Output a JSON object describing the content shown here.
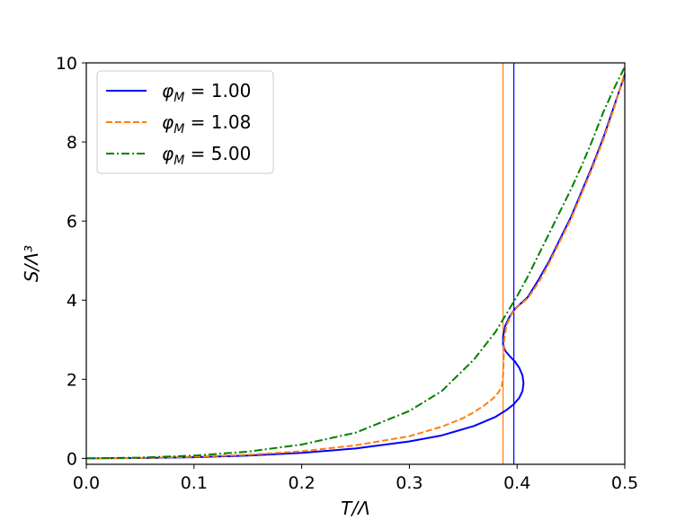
{
  "chart_data": {
    "type": "line",
    "title": "",
    "xlabel": "T/Λ",
    "ylabel": "S/Λ³",
    "xlim": [
      0.0,
      0.5
    ],
    "ylim": [
      -0.15,
      10.0
    ],
    "xticks": [
      "0.0",
      "0.1",
      "0.2",
      "0.3",
      "0.4",
      "0.5"
    ],
    "yticks": [
      "0",
      "2",
      "4",
      "6",
      "8",
      "10"
    ],
    "grid": false,
    "legend_position": "top-left",
    "series": [
      {
        "name": "φ_M = 1.00",
        "legend_symbol": "φ",
        "legend_subscript": "M",
        "legend_value": " = 1.00",
        "color": "#0000ff",
        "style": "solid",
        "x": [
          0.0,
          0.05,
          0.1,
          0.15,
          0.2,
          0.25,
          0.3,
          0.33,
          0.36,
          0.38,
          0.39,
          0.397,
          0.402,
          0.405,
          0.406,
          0.405,
          0.402,
          0.398,
          0.393,
          0.389,
          0.387,
          0.387,
          0.389,
          0.393,
          0.398,
          0.41,
          0.42,
          0.43,
          0.44,
          0.45,
          0.46,
          0.47,
          0.48,
          0.49,
          0.5
        ],
        "y": [
          0.0,
          0.01,
          0.03,
          0.07,
          0.14,
          0.25,
          0.43,
          0.58,
          0.82,
          1.05,
          1.22,
          1.37,
          1.53,
          1.7,
          1.9,
          2.1,
          2.29,
          2.45,
          2.59,
          2.72,
          2.88,
          3.08,
          3.35,
          3.58,
          3.78,
          4.08,
          4.52,
          5.0,
          5.55,
          6.1,
          6.75,
          7.4,
          8.1,
          8.9,
          9.7
        ]
      },
      {
        "name": "φ_M = 1.08",
        "legend_symbol": "φ",
        "legend_subscript": "M",
        "legend_value": " = 1.08",
        "color": "#ff7f0e",
        "style": "dashed",
        "x": [
          0.0,
          0.05,
          0.1,
          0.15,
          0.2,
          0.25,
          0.3,
          0.33,
          0.35,
          0.36,
          0.37,
          0.378,
          0.383,
          0.386,
          0.387,
          0.3875,
          0.388,
          0.39,
          0.395,
          0.4,
          0.41,
          0.42,
          0.43,
          0.44,
          0.45,
          0.46,
          0.47,
          0.48,
          0.49,
          0.5
        ],
        "y": [
          0.0,
          0.01,
          0.04,
          0.09,
          0.18,
          0.33,
          0.56,
          0.8,
          1.02,
          1.17,
          1.35,
          1.52,
          1.68,
          1.85,
          2.1,
          2.5,
          3.0,
          3.35,
          3.65,
          3.82,
          4.05,
          4.45,
          4.95,
          5.5,
          6.05,
          6.7,
          7.35,
          8.05,
          8.85,
          9.75
        ]
      },
      {
        "name": "φ_M = 5.00",
        "legend_symbol": "φ",
        "legend_subscript": "M",
        "legend_value": " = 5.00",
        "color": "#008000",
        "style": "dashdot",
        "x": [
          0.0,
          0.05,
          0.1,
          0.15,
          0.2,
          0.25,
          0.3,
          0.33,
          0.36,
          0.38,
          0.39,
          0.4,
          0.41,
          0.42,
          0.43,
          0.44,
          0.45,
          0.46,
          0.47,
          0.48,
          0.49,
          0.5
        ],
        "y": [
          0.0,
          0.02,
          0.07,
          0.17,
          0.35,
          0.65,
          1.2,
          1.7,
          2.5,
          3.2,
          3.65,
          4.1,
          4.6,
          5.15,
          5.7,
          6.25,
          6.8,
          7.4,
          8.05,
          8.75,
          9.35,
          9.9
        ]
      }
    ],
    "vlines": [
      {
        "x": 0.387,
        "color": "#ff7f0e"
      },
      {
        "x": 0.397,
        "color": "#0000ff"
      }
    ]
  }
}
